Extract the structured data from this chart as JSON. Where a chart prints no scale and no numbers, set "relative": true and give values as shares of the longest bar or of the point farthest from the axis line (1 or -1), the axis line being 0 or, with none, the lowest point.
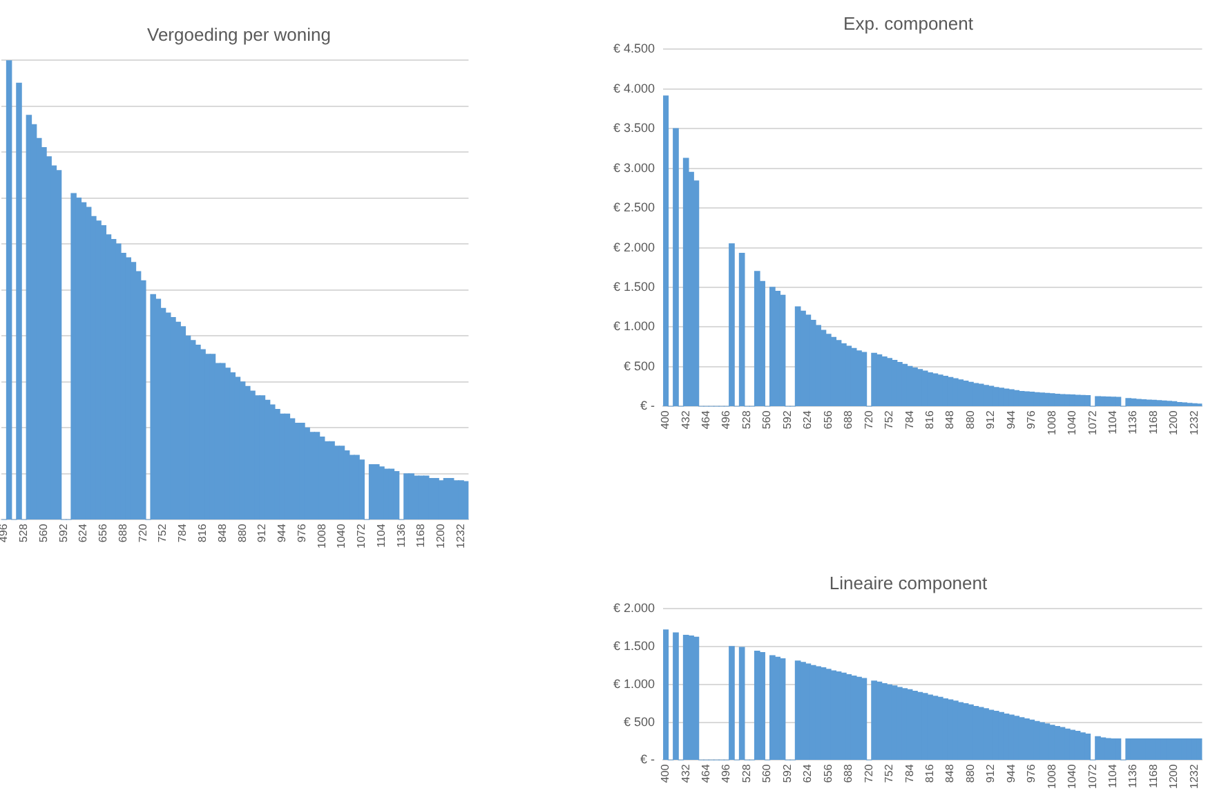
{
  "chart_data": [
    {
      "type": "bar",
      "title": "Vergoeding per woning",
      "relative": true,
      "grid": "y",
      "categories": [
        "496",
        null,
        null,
        null,
        "528",
        null,
        null,
        null,
        "560",
        null,
        null,
        null,
        "592",
        null,
        null,
        null,
        "624",
        null,
        null,
        null,
        "656",
        null,
        null,
        null,
        "688",
        null,
        null,
        null,
        "720",
        null,
        null,
        null,
        "752",
        null,
        null,
        null,
        "784",
        null,
        null,
        null,
        "816",
        null,
        null,
        null,
        "848",
        null,
        null,
        null,
        "880",
        null,
        null,
        null,
        "912",
        null,
        null,
        null,
        "944",
        null,
        null,
        null,
        "976",
        null,
        null,
        null,
        "1008",
        null,
        null,
        null,
        "1040",
        null,
        null,
        null,
        "1072",
        null,
        null,
        null,
        "1104",
        null,
        null,
        null,
        "1136",
        null,
        null,
        null,
        "1168",
        null,
        null,
        null,
        "1200",
        null,
        null,
        null,
        "1232",
        null
      ],
      "series": [
        {
          "color": "#5b9bd5",
          "values": [
            0,
            1,
            0,
            0.95,
            0,
            0.88,
            0.86,
            0.83,
            0.81,
            0.79,
            0.77,
            0.76,
            0,
            0,
            0.71,
            0.7,
            0.69,
            0.68,
            0.66,
            0.65,
            0.64,
            0.62,
            0.61,
            0.6,
            0.58,
            0.57,
            0.56,
            0.54,
            0.52,
            0,
            0.49,
            0.48,
            0.46,
            0.45,
            0.44,
            0.43,
            0.42,
            0.4,
            0.39,
            0.38,
            0.37,
            0.36,
            0.36,
            0.34,
            0.34,
            0.33,
            0.32,
            0.31,
            0.3,
            0.29,
            0.28,
            0.27,
            0.27,
            0.26,
            0.25,
            0.24,
            0.23,
            0.23,
            0.22,
            0.21,
            0.21,
            0.2,
            0.19,
            0.19,
            0.18,
            0.17,
            0.17,
            0.16,
            0.16,
            0.15,
            0.14,
            0.14,
            0.13,
            0,
            0.12,
            0.12,
            0.115,
            0.11,
            0.11,
            0.105,
            0,
            0.1,
            0.1,
            0.095,
            0.095,
            0.095,
            0.09,
            0.09,
            0.085,
            0.09,
            0.09,
            0.085,
            0.085,
            0.083
          ]
        }
      ]
    },
    {
      "type": "bar",
      "title": "Exp. component",
      "grid": "y",
      "categories": [
        "400",
        null,
        null,
        null,
        "432",
        null,
        null,
        null,
        "464",
        null,
        null,
        null,
        "496",
        null,
        null,
        null,
        "528",
        null,
        null,
        null,
        "560",
        null,
        null,
        null,
        "592",
        null,
        null,
        null,
        "624",
        null,
        null,
        null,
        "656",
        null,
        null,
        null,
        "688",
        null,
        null,
        null,
        "720",
        null,
        null,
        null,
        "752",
        null,
        null,
        null,
        "784",
        null,
        null,
        null,
        "816",
        null,
        null,
        null,
        "848",
        null,
        null,
        null,
        "880",
        null,
        null,
        null,
        "912",
        null,
        null,
        null,
        "944",
        null,
        null,
        null,
        "976",
        null,
        null,
        null,
        "1008",
        null,
        null,
        null,
        "1040",
        null,
        null,
        null,
        "1072",
        null,
        null,
        null,
        "1104",
        null,
        null,
        null,
        "1136",
        null,
        null,
        null,
        "1168",
        null,
        null,
        null,
        "1200",
        null,
        null,
        null,
        "1232",
        null
      ],
      "ylim": [
        0,
        4500
      ],
      "yticks": [
        {
          "value": 0,
          "label": "€ -"
        },
        {
          "value": 500,
          "label": "€ 500"
        },
        {
          "value": 1000,
          "label": "€ 1.000"
        },
        {
          "value": 1500,
          "label": "€ 1.500"
        },
        {
          "value": 2000,
          "label": "€ 2.000"
        },
        {
          "value": 2500,
          "label": "€ 2.500"
        },
        {
          "value": 3000,
          "label": "€ 3.000"
        },
        {
          "value": 3500,
          "label": "€ 3.500"
        },
        {
          "value": 4000,
          "label": "€ 4.000"
        },
        {
          "value": 4500,
          "label": "€ 4.500"
        }
      ],
      "series": [
        {
          "color": "#5b9bd5",
          "values": [
            3910,
            0,
            3500,
            0,
            3125,
            2950,
            2840,
            0,
            0,
            0,
            0,
            0,
            0,
            2050,
            0,
            1930,
            0,
            0,
            1700,
            1575,
            0,
            1500,
            1450,
            1400,
            0,
            0,
            1255,
            1200,
            1150,
            1085,
            1020,
            960,
            910,
            870,
            830,
            790,
            760,
            730,
            700,
            680,
            0,
            670,
            650,
            625,
            605,
            580,
            555,
            530,
            505,
            485,
            465,
            445,
            425,
            410,
            395,
            380,
            365,
            350,
            335,
            320,
            305,
            290,
            280,
            265,
            255,
            240,
            230,
            220,
            210,
            200,
            190,
            185,
            180,
            175,
            170,
            165,
            160,
            155,
            150,
            148,
            145,
            142,
            140,
            138,
            0,
            125,
            122,
            120,
            118,
            115,
            0,
            100,
            95,
            90,
            85,
            80,
            78,
            75,
            70,
            65,
            60,
            50,
            45,
            40,
            35,
            30
          ]
        }
      ]
    },
    {
      "type": "bar",
      "title": "Lineaire component",
      "grid": "y",
      "categories": [
        "400",
        null,
        null,
        null,
        "432",
        null,
        null,
        null,
        "464",
        null,
        null,
        null,
        "496",
        null,
        null,
        null,
        "528",
        null,
        null,
        null,
        "560",
        null,
        null,
        null,
        "592",
        null,
        null,
        null,
        "624",
        null,
        null,
        null,
        "656",
        null,
        null,
        null,
        "688",
        null,
        null,
        null,
        "720",
        null,
        null,
        null,
        "752",
        null,
        null,
        null,
        "784",
        null,
        null,
        null,
        "816",
        null,
        null,
        null,
        "848",
        null,
        null,
        null,
        "880",
        null,
        null,
        null,
        "912",
        null,
        null,
        null,
        "944",
        null,
        null,
        null,
        "976",
        null,
        null,
        null,
        "1008",
        null,
        null,
        null,
        "1040",
        null,
        null,
        null,
        "1072",
        null,
        null,
        null,
        "1104",
        null,
        null,
        null,
        "1136",
        null,
        null,
        null,
        "1168",
        null,
        null,
        null,
        "1200",
        null,
        null,
        null,
        "1232",
        null
      ],
      "ylim": [
        0,
        2000
      ],
      "yticks": [
        {
          "value": 0,
          "label": "€ -"
        },
        {
          "value": 500,
          "label": "€ 500"
        },
        {
          "value": 1000,
          "label": "€ 1.000"
        },
        {
          "value": 1500,
          "label": "€ 1.500"
        },
        {
          "value": 2000,
          "label": "€ 2.000"
        }
      ],
      "series": [
        {
          "color": "#5b9bd5",
          "values": [
            1720,
            0,
            1680,
            0,
            1650,
            1640,
            1625,
            0,
            0,
            0,
            0,
            0,
            0,
            1500,
            0,
            1490,
            0,
            0,
            1440,
            1420,
            0,
            1380,
            1360,
            1340,
            0,
            0,
            1310,
            1290,
            1270,
            1250,
            1235,
            1220,
            1200,
            1180,
            1165,
            1150,
            1130,
            1110,
            1095,
            1080,
            0,
            1045,
            1030,
            1010,
            995,
            980,
            960,
            945,
            930,
            910,
            895,
            880,
            860,
            845,
            830,
            810,
            795,
            780,
            760,
            745,
            730,
            710,
            695,
            680,
            660,
            645,
            630,
            610,
            595,
            580,
            560,
            545,
            530,
            510,
            495,
            480,
            460,
            445,
            430,
            410,
            395,
            380,
            360,
            345,
            0,
            310,
            295,
            285,
            280,
            280,
            0,
            280,
            280,
            280,
            280,
            280,
            280,
            280,
            280,
            280,
            280,
            280,
            280,
            280,
            280,
            280
          ]
        }
      ]
    }
  ]
}
